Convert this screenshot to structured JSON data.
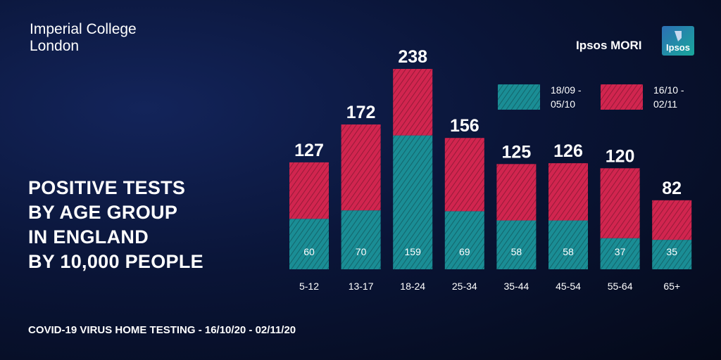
{
  "header": {
    "org": "Imperial College London",
    "partner": "Ipsos MORI",
    "partner_logo": "Ipsos"
  },
  "chart_data": {
    "type": "stacked_bar",
    "title": [
      "POSITIVE TESTS",
      "BY AGE GROUP",
      "IN ENGLAND",
      "BY 10,000 PEOPLE"
    ],
    "categories": [
      "5-12",
      "13-17",
      "18-24",
      "25-34",
      "35-44",
      "45-54",
      "55-64",
      "65+"
    ],
    "series": [
      {
        "name": "18/09 - 05/10",
        "color": "#1a8d95",
        "values": [
          60,
          70,
          159,
          69,
          58,
          58,
          37,
          35
        ]
      },
      {
        "name": "16/10 - 02/11",
        "color": "#d1254f",
        "values": [
          67,
          102,
          79,
          87,
          67,
          68,
          83,
          47
        ]
      }
    ],
    "totals": [
      127,
      172,
      238,
      156,
      125,
      126,
      120,
      82
    ],
    "footer": "COVID-19 VIRUS HOME TESTING - 16/10/20 - 02/11/20"
  }
}
